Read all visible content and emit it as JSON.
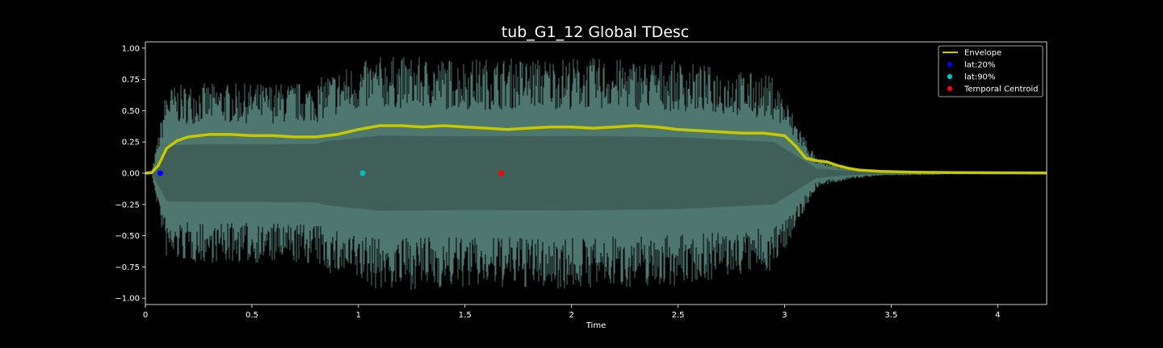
{
  "chart_data": {
    "type": "line",
    "title": "tub_G1_12 Global TDesc",
    "xlabel": "Time",
    "ylabel": "",
    "xlim": [
      0,
      4.23
    ],
    "ylim": [
      -1.05,
      1.05
    ],
    "x_ticks": [
      0,
      0.5,
      1,
      1.5,
      2,
      2.5,
      3,
      3.5,
      4
    ],
    "x_tick_labels": [
      "0",
      "0.5",
      "1",
      "1.5",
      "2",
      "2.5",
      "3",
      "3.5",
      "4"
    ],
    "y_ticks": [
      1.0,
      0.75,
      0.5,
      0.25,
      0.0,
      -0.25,
      -0.5,
      -0.75,
      -1.0
    ],
    "y_tick_labels": [
      "1.00",
      "0.75",
      "0.50",
      "0.25",
      "0.00",
      "−0.25",
      "−0.50",
      "−0.75",
      "−1.00"
    ],
    "legend_position": "top-right",
    "waveform": {
      "color": "#74b3a5",
      "amplitude_envelope": [
        [
          0,
          0.0
        ],
        [
          0.03,
          0.01
        ],
        [
          0.06,
          0.3
        ],
        [
          0.1,
          0.7
        ],
        [
          0.25,
          0.72
        ],
        [
          0.5,
          0.72
        ],
        [
          0.8,
          0.73
        ],
        [
          0.85,
          0.8
        ],
        [
          1.1,
          0.94
        ],
        [
          1.5,
          0.92
        ],
        [
          2.0,
          0.93
        ],
        [
          2.5,
          0.9
        ],
        [
          2.95,
          0.78
        ],
        [
          3.05,
          0.45
        ],
        [
          3.15,
          0.12
        ],
        [
          3.3,
          0.05
        ],
        [
          3.45,
          0.02
        ],
        [
          3.8,
          0.01
        ],
        [
          4.23,
          0.005
        ]
      ]
    },
    "series": [
      {
        "name": "Envelope",
        "color": "#c8c800",
        "points": [
          [
            0.0,
            0.0
          ],
          [
            0.03,
            0.005
          ],
          [
            0.06,
            0.06
          ],
          [
            0.1,
            0.2
          ],
          [
            0.15,
            0.26
          ],
          [
            0.2,
            0.29
          ],
          [
            0.3,
            0.31
          ],
          [
            0.4,
            0.31
          ],
          [
            0.5,
            0.3
          ],
          [
            0.6,
            0.3
          ],
          [
            0.7,
            0.29
          ],
          [
            0.8,
            0.29
          ],
          [
            0.9,
            0.31
          ],
          [
            1.0,
            0.35
          ],
          [
            1.1,
            0.38
          ],
          [
            1.2,
            0.38
          ],
          [
            1.3,
            0.37
          ],
          [
            1.4,
            0.38
          ],
          [
            1.5,
            0.37
          ],
          [
            1.6,
            0.36
          ],
          [
            1.7,
            0.35
          ],
          [
            1.8,
            0.36
          ],
          [
            1.9,
            0.37
          ],
          [
            2.0,
            0.37
          ],
          [
            2.1,
            0.36
          ],
          [
            2.2,
            0.37
          ],
          [
            2.3,
            0.38
          ],
          [
            2.4,
            0.37
          ],
          [
            2.5,
            0.35
          ],
          [
            2.6,
            0.34
          ],
          [
            2.7,
            0.33
          ],
          [
            2.8,
            0.32
          ],
          [
            2.9,
            0.32
          ],
          [
            3.0,
            0.3
          ],
          [
            3.05,
            0.22
          ],
          [
            3.1,
            0.12
          ],
          [
            3.15,
            0.1
          ],
          [
            3.2,
            0.09
          ],
          [
            3.25,
            0.06
          ],
          [
            3.3,
            0.04
          ],
          [
            3.35,
            0.025
          ],
          [
            3.45,
            0.015
          ],
          [
            3.6,
            0.008
          ],
          [
            3.8,
            0.005
          ],
          [
            4.0,
            0.003
          ],
          [
            4.23,
            0.002
          ]
        ]
      },
      {
        "name": "lat:20%",
        "color": "#0000ff",
        "x": 0.07,
        "y": 0.0
      },
      {
        "name": "lat:90%",
        "color": "#00bfbf",
        "x": 1.02,
        "y": 0.0
      },
      {
        "name": "Temporal Centroid",
        "color": "#ff0000",
        "x": 1.67,
        "y": 0.0
      }
    ],
    "legend": [
      {
        "label": "Envelope",
        "kind": "line",
        "color": "#c8c800"
      },
      {
        "label": "lat:20%",
        "kind": "marker",
        "color": "#0000ff"
      },
      {
        "label": "lat:90%",
        "kind": "marker",
        "color": "#00bfbf"
      },
      {
        "label": "Temporal Centroid",
        "kind": "marker",
        "color": "#ff0000"
      }
    ]
  }
}
